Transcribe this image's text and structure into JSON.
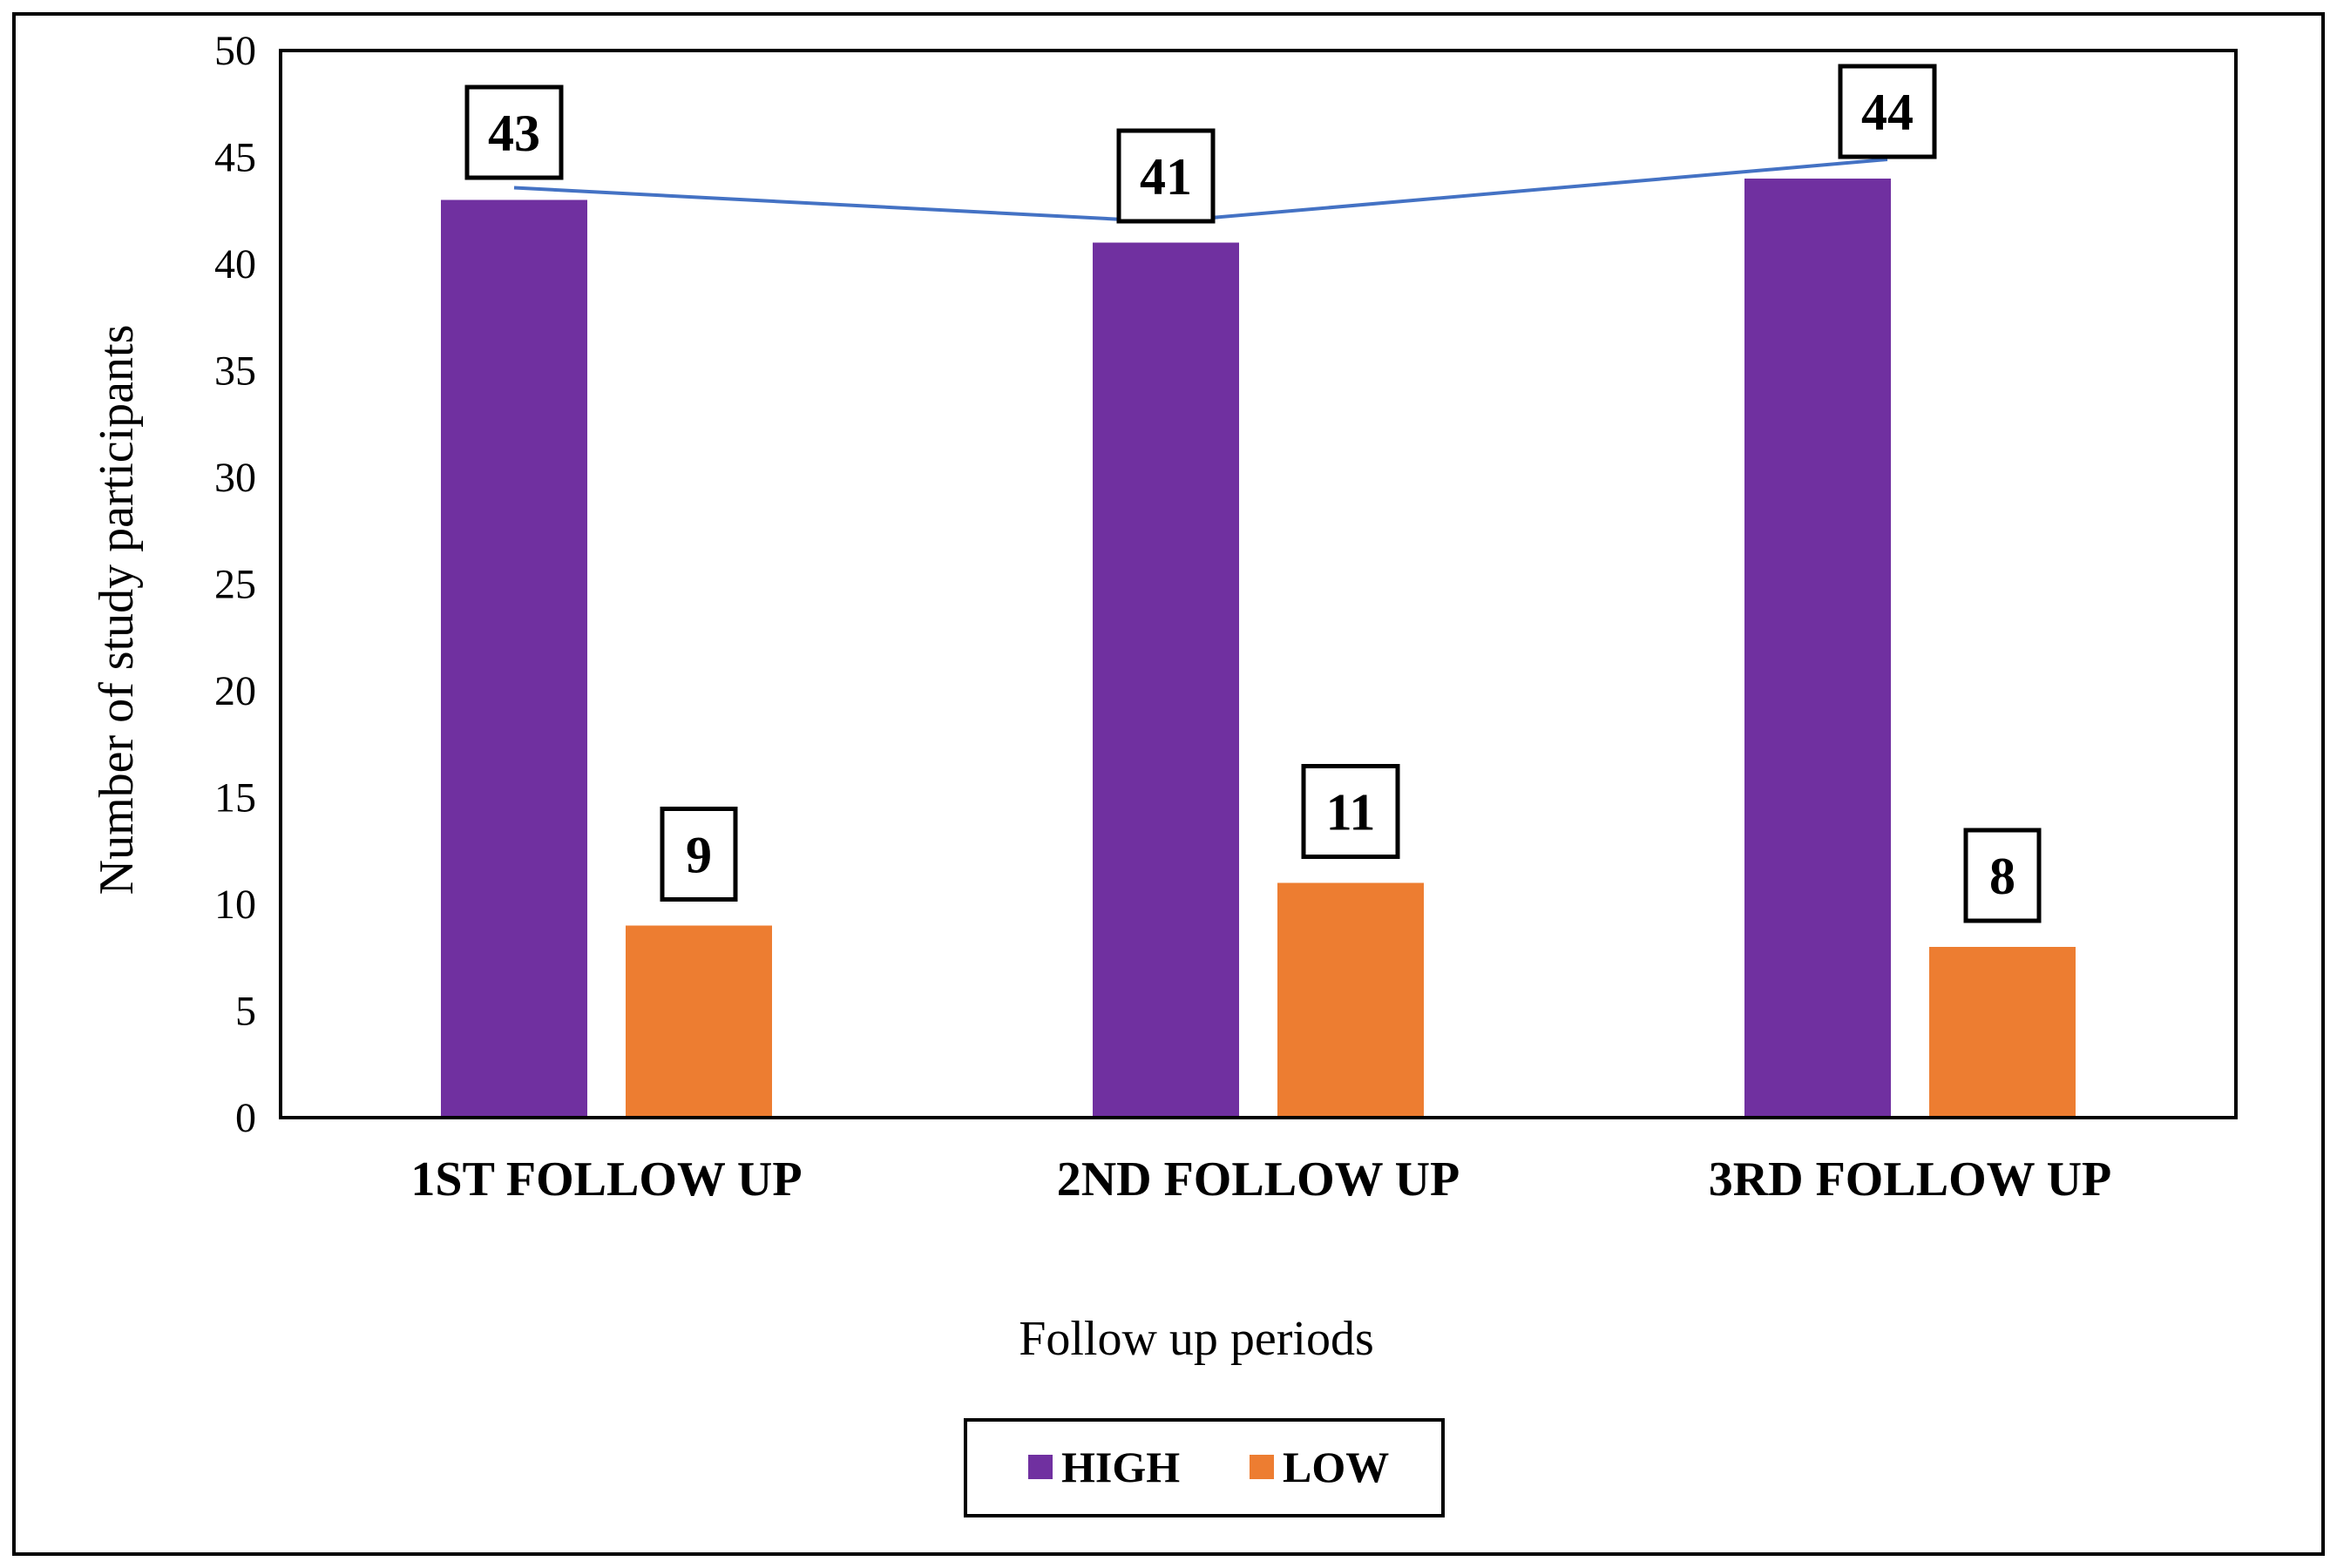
{
  "chart_data": {
    "type": "bar",
    "title": "",
    "xlabel": "Follow up periods",
    "ylabel": "Number of study participants",
    "categories": [
      "1ST FOLLOW UP",
      "2ND FOLLOW UP",
      "3RD FOLLOW UP"
    ],
    "series": [
      {
        "name": "HIGH",
        "values": [
          43,
          41,
          44
        ],
        "color": "#7030A0"
      },
      {
        "name": "LOW",
        "values": [
          9,
          11,
          8
        ],
        "color": "#ED7D31"
      }
    ],
    "trend_line": {
      "series": "HIGH",
      "color": "#4472C4"
    },
    "ylim": [
      0,
      50
    ],
    "yticks": [
      0,
      5,
      10,
      15,
      20,
      25,
      30,
      35,
      40,
      45,
      50
    ],
    "data_labels": true,
    "grid": false,
    "legend_position": "bottom"
  }
}
